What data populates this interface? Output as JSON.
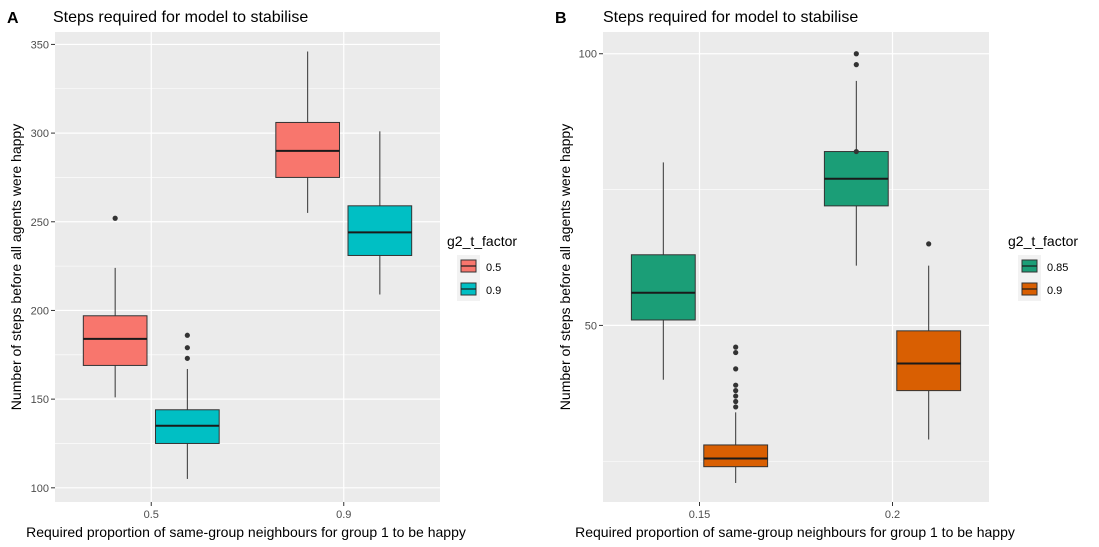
{
  "chart_data": [
    {
      "type": "box",
      "panel_label": "A",
      "title": "Steps required for model to stabilise",
      "xlabel": "Required proportion of same-group neighbours for group 1 to be happy",
      "ylabel": "Number of steps before all agents were happy",
      "categories": [
        "0.5",
        "0.9"
      ],
      "ylim": [
        92,
        357
      ],
      "yticks": [
        100,
        150,
        200,
        250,
        300,
        350
      ],
      "grid": true,
      "legend": {
        "title": "g2_t_factor",
        "position": "right"
      },
      "series": [
        {
          "name": "0.5",
          "color": "#F8766D",
          "boxes": [
            {
              "category": "0.5",
              "min": 151,
              "q1": 169,
              "median": 184,
              "q3": 197,
              "max": 224,
              "outliers": [
                252
              ]
            },
            {
              "category": "0.9",
              "min": 255,
              "q1": 275,
              "median": 290,
              "q3": 306,
              "max": 346,
              "outliers": []
            }
          ]
        },
        {
          "name": "0.9",
          "color": "#00BFC4",
          "boxes": [
            {
              "category": "0.5",
              "min": 105,
              "q1": 125,
              "median": 135,
              "q3": 144,
              "max": 167,
              "outliers": [
                173,
                179,
                186
              ]
            },
            {
              "category": "0.9",
              "min": 209,
              "q1": 231,
              "median": 244,
              "q3": 259,
              "max": 301,
              "outliers": []
            }
          ]
        }
      ]
    },
    {
      "type": "box",
      "panel_label": "B",
      "title": "Steps required for model to stabilise",
      "xlabel": "Required proportion of same-group neighbours for group 1 to be happy",
      "ylabel": "Number of steps before all agents were happy",
      "categories": [
        "0.15",
        "0.2"
      ],
      "ylim": [
        17.5,
        104
      ],
      "yticks": [
        50,
        100
      ],
      "grid": true,
      "legend": {
        "title": "g2_t_factor",
        "position": "right"
      },
      "series": [
        {
          "name": "0.85",
          "color": "#1B9E77",
          "boxes": [
            {
              "category": "0.15",
              "min": 40,
              "q1": 51,
              "median": 56,
              "q3": 63,
              "max": 80,
              "outliers": []
            },
            {
              "category": "0.2",
              "min": 61,
              "q1": 72,
              "median": 77,
              "q3": 82,
              "max": 95,
              "outliers": [
                98,
                100,
                82
              ]
            }
          ]
        },
        {
          "name": "0.9",
          "color": "#D95F02",
          "boxes": [
            {
              "category": "0.15",
              "min": 21,
              "q1": 24,
              "median": 25.5,
              "q3": 28,
              "max": 34,
              "outliers": [
                35,
                36,
                37,
                38,
                39,
                42,
                45,
                46
              ]
            },
            {
              "category": "0.2",
              "min": 29,
              "q1": 38,
              "median": 43,
              "q3": 49,
              "max": 61,
              "outliers": [
                65
              ]
            }
          ]
        }
      ]
    }
  ]
}
